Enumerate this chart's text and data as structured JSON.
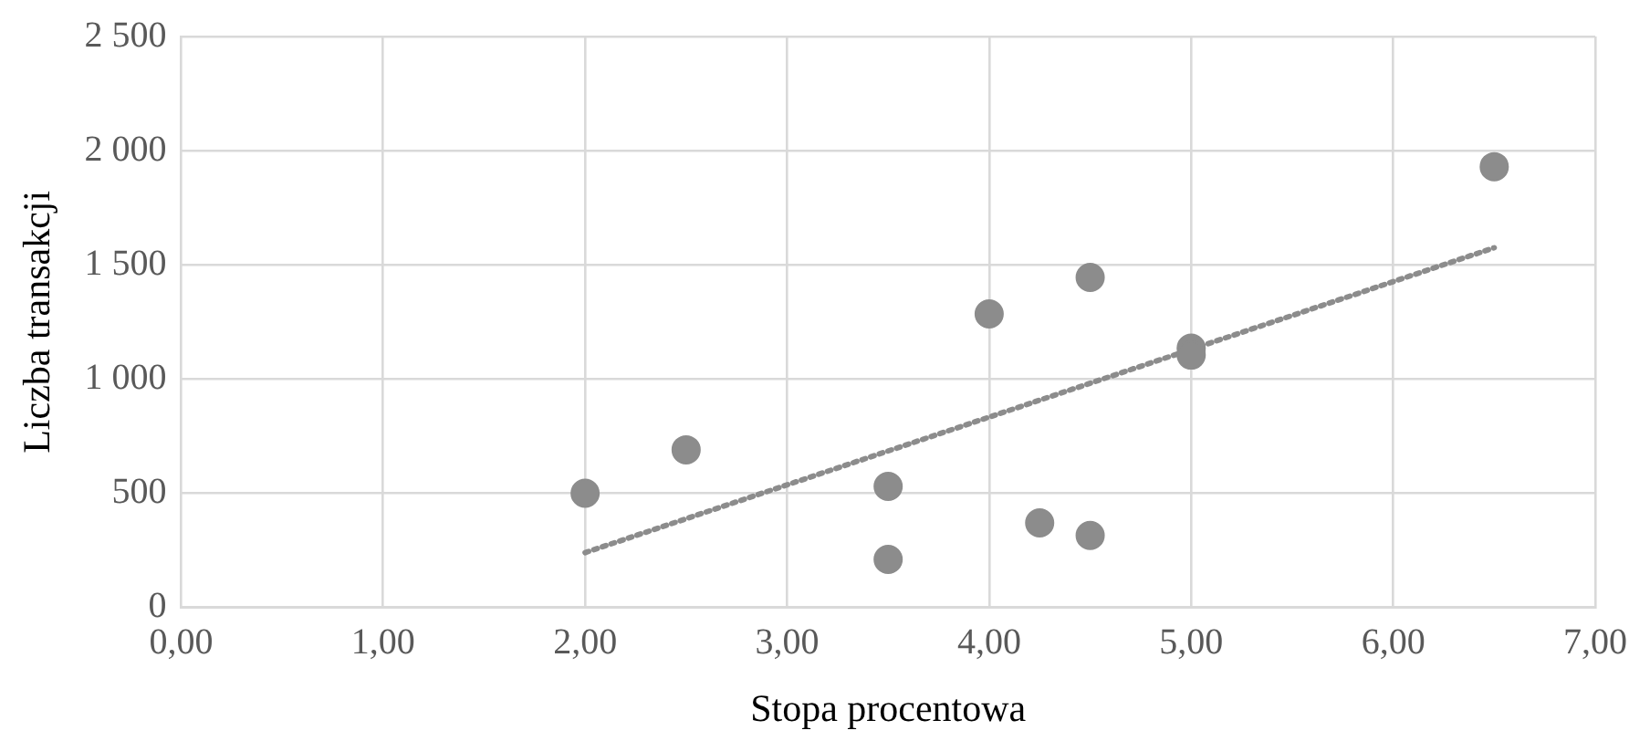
{
  "chart_data": {
    "type": "scatter",
    "xlabel": "Stopa procentowa",
    "ylabel": "Liczba transakcji",
    "grid": true,
    "legend": false,
    "marker": "circle",
    "xlim": [
      0,
      7
    ],
    "xticks": [
      {
        "value": 0,
        "label": "0,00"
      },
      {
        "value": 1,
        "label": "1,00"
      },
      {
        "value": 2,
        "label": "2,00"
      },
      {
        "value": 3,
        "label": "3,00"
      },
      {
        "value": 4,
        "label": "4,00"
      },
      {
        "value": 5,
        "label": "5,00"
      },
      {
        "value": 6,
        "label": "6,00"
      },
      {
        "value": 7,
        "label": "7,00"
      }
    ],
    "ylim": [
      0,
      2500
    ],
    "yticks": [
      0,
      500,
      {
        "value": 1000,
        "label": "1 000"
      },
      {
        "value": 1500,
        "label": "1 500"
      },
      {
        "value": 2000,
        "label": "2 000"
      },
      {
        "value": 2500,
        "label": "2 500"
      }
    ],
    "series": [
      {
        "color": "#8c8c8c",
        "x": [
          2.0,
          2.5,
          3.5,
          3.5,
          4.0,
          4.25,
          4.5,
          4.5,
          5.0,
          5.0,
          6.5
        ],
        "values": [
          500,
          690,
          530,
          210,
          1285,
          370,
          1445,
          315,
          1135,
          1105,
          1930
        ]
      },
      {
        "type": "line",
        "color": "#8c8c8c",
        "marker": "none",
        "line_style": "dotted",
        "x": [
          2.0,
          6.5
        ],
        "values": [
          240,
          1575
        ]
      }
    ]
  }
}
